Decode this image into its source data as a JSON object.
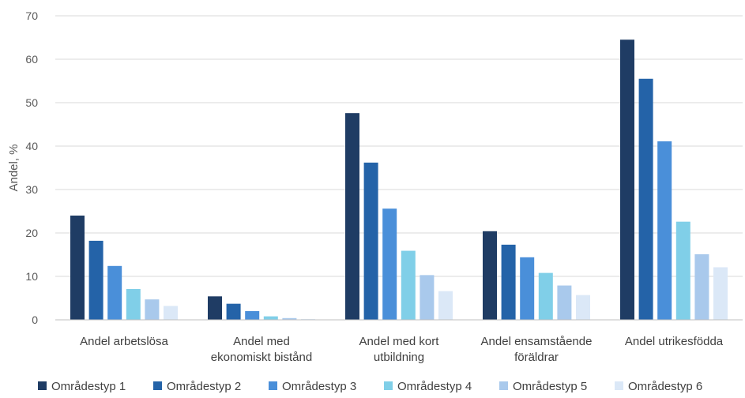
{
  "chart_data": {
    "type": "bar",
    "ylabel": "Andel, %",
    "xlabel": "",
    "ylim": [
      0,
      70
    ],
    "yticks": [
      0,
      10,
      20,
      30,
      40,
      50,
      60,
      70
    ],
    "grid": true,
    "legend_position": "bottom",
    "categories": [
      [
        "Andel arbetslösa"
      ],
      [
        "Andel med",
        "ekonomiskt bistånd"
      ],
      [
        "Andel med kort",
        "utbildning"
      ],
      [
        "Andel ensamstående",
        "föräldrar"
      ],
      [
        "Andel utrikesfödda"
      ]
    ],
    "series": [
      {
        "name": "Områdestyp 1",
        "color": "#1f3c64",
        "values": [
          24,
          5.4,
          47.6,
          20.4,
          64.5
        ]
      },
      {
        "name": "Områdestyp 2",
        "color": "#2463a8",
        "values": [
          18.2,
          3.7,
          36.2,
          17.3,
          55.5
        ]
      },
      {
        "name": "Områdestyp 3",
        "color": "#4a8fd9",
        "values": [
          12.4,
          2,
          25.6,
          14.4,
          41.1
        ]
      },
      {
        "name": "Områdestyp 4",
        "color": "#80cfe8",
        "values": [
          7.1,
          0.8,
          15.9,
          10.8,
          22.6
        ]
      },
      {
        "name": "Områdestyp 5",
        "color": "#a9c9ec",
        "values": [
          4.7,
          0.4,
          10.3,
          7.9,
          15.1
        ]
      },
      {
        "name": "Områdestyp 6",
        "color": "#dbe8f7",
        "values": [
          3.2,
          0.2,
          6.6,
          5.7,
          12.1
        ]
      }
    ]
  }
}
